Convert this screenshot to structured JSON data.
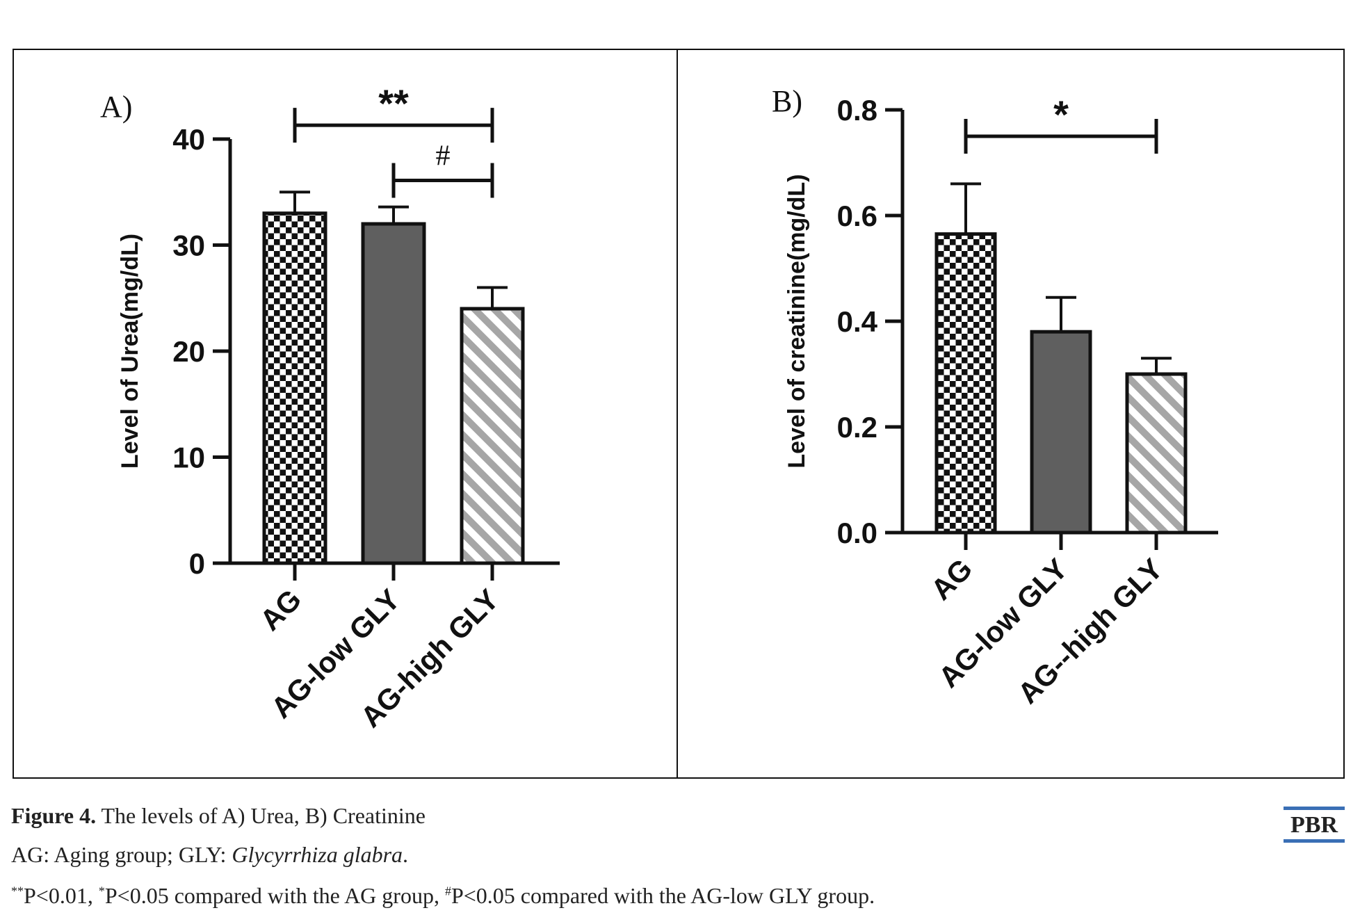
{
  "chart_data": [
    {
      "type": "bar",
      "panel_label": "A)",
      "ylabel": "Level of Urea(mg/dL)",
      "xlabel": "",
      "ylim": [
        0,
        40
      ],
      "yticks": [
        0,
        10,
        20,
        30,
        40
      ],
      "categories": [
        "AG",
        "AG-low GLY",
        "AG-high GLY"
      ],
      "values": [
        33,
        32,
        24
      ],
      "errors": [
        2,
        1.6,
        2
      ],
      "patterns": [
        "checker",
        "solid",
        "stripe"
      ],
      "significance": [
        {
          "from": 0,
          "to": 2,
          "label": "**",
          "y": 41.3
        },
        {
          "from": 1,
          "to": 2,
          "label": "#",
          "y": 36.1
        }
      ],
      "grid": false,
      "legend": "none"
    },
    {
      "type": "bar",
      "panel_label": "B)",
      "ylabel": "Level of creatinine(mg/dL)",
      "xlabel": "",
      "ylim": [
        0,
        0.8
      ],
      "yticks": [
        "0.0",
        "0.2",
        "0.4",
        "0.6",
        "0.8"
      ],
      "categories": [
        "AG",
        "AG-low GLY",
        "AG--high GLY"
      ],
      "values": [
        0.565,
        0.38,
        0.3
      ],
      "errors": [
        0.095,
        0.065,
        0.03
      ],
      "patterns": [
        "checker",
        "solid",
        "stripe"
      ],
      "significance": [
        {
          "from": 0,
          "to": 2,
          "label": "*",
          "y": 0.75
        }
      ],
      "grid": false,
      "legend": "none"
    }
  ],
  "colors": {
    "axis": "#111111",
    "solid_bar": "#5f5f5f",
    "stripe": "#a6a6a6",
    "checker_dark": "#111111",
    "checker_light": "#ffffff",
    "logo_accent": "#3a6fb5"
  },
  "caption": {
    "figure_label": "Figure 4.",
    "title": " The levels of A) Urea, B) Creatinine",
    "abbrev_prefix": "AG: Aging group; GLY: ",
    "abbrev_species": "Glycyrrhiza glabra",
    "abbrev_suffix": ".",
    "sig_mark1": "**",
    "sig_text1": "P<0.01, ",
    "sig_mark2": "*",
    "sig_text2": "P<0.05 compared with the AG group, ",
    "sig_mark3": "#",
    "sig_text3": "P<0.05 compared with the AG-low GLY group."
  },
  "journal_logo": "PBR"
}
